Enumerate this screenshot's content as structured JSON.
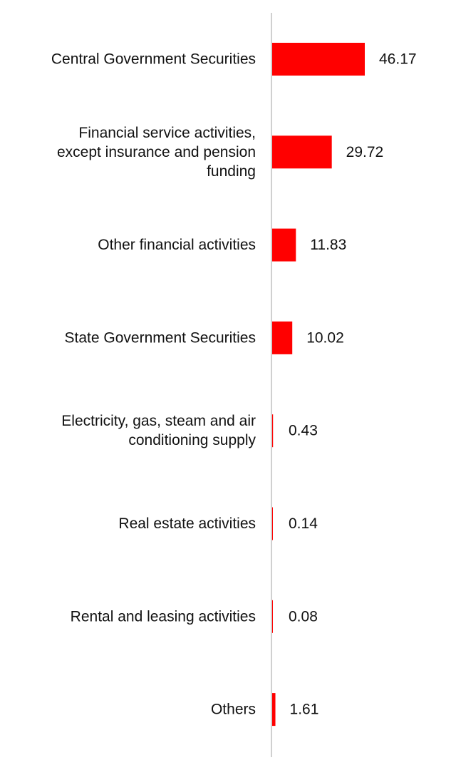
{
  "chart_data": {
    "type": "bar",
    "orientation": "horizontal",
    "categories": [
      "Central Government Securities",
      "Financial service activities, except insurance and pension funding",
      "Other financial activities",
      "State Government Securities",
      "Electricity, gas, steam and air conditioning supply",
      "Real estate activities",
      "Rental and leasing activities",
      "Others"
    ],
    "category_lines": [
      [
        "Central Government Securities"
      ],
      [
        "Financial service activities,",
        "except insurance and pension",
        "funding"
      ],
      [
        "Other financial activities"
      ],
      [
        "State Government Securities"
      ],
      [
        "Electricity, gas, steam and air",
        "conditioning supply"
      ],
      [
        "Real estate activities"
      ],
      [
        "Rental and leasing activities"
      ],
      [
        "Others"
      ]
    ],
    "values": [
      46.17,
      29.72,
      11.83,
      10.02,
      0.43,
      0.14,
      0.08,
      1.61
    ],
    "value_labels": [
      "46.17",
      "29.72",
      "11.83",
      "10.02",
      "0.43",
      "0.14",
      "0.08",
      "1.61"
    ],
    "bar_color": "#ff0000",
    "axis_color": "#d0d0d0",
    "title": "",
    "xlabel": "",
    "ylabel": "",
    "xlim": [
      0,
      46.17
    ],
    "grid": false,
    "legend": "none"
  }
}
